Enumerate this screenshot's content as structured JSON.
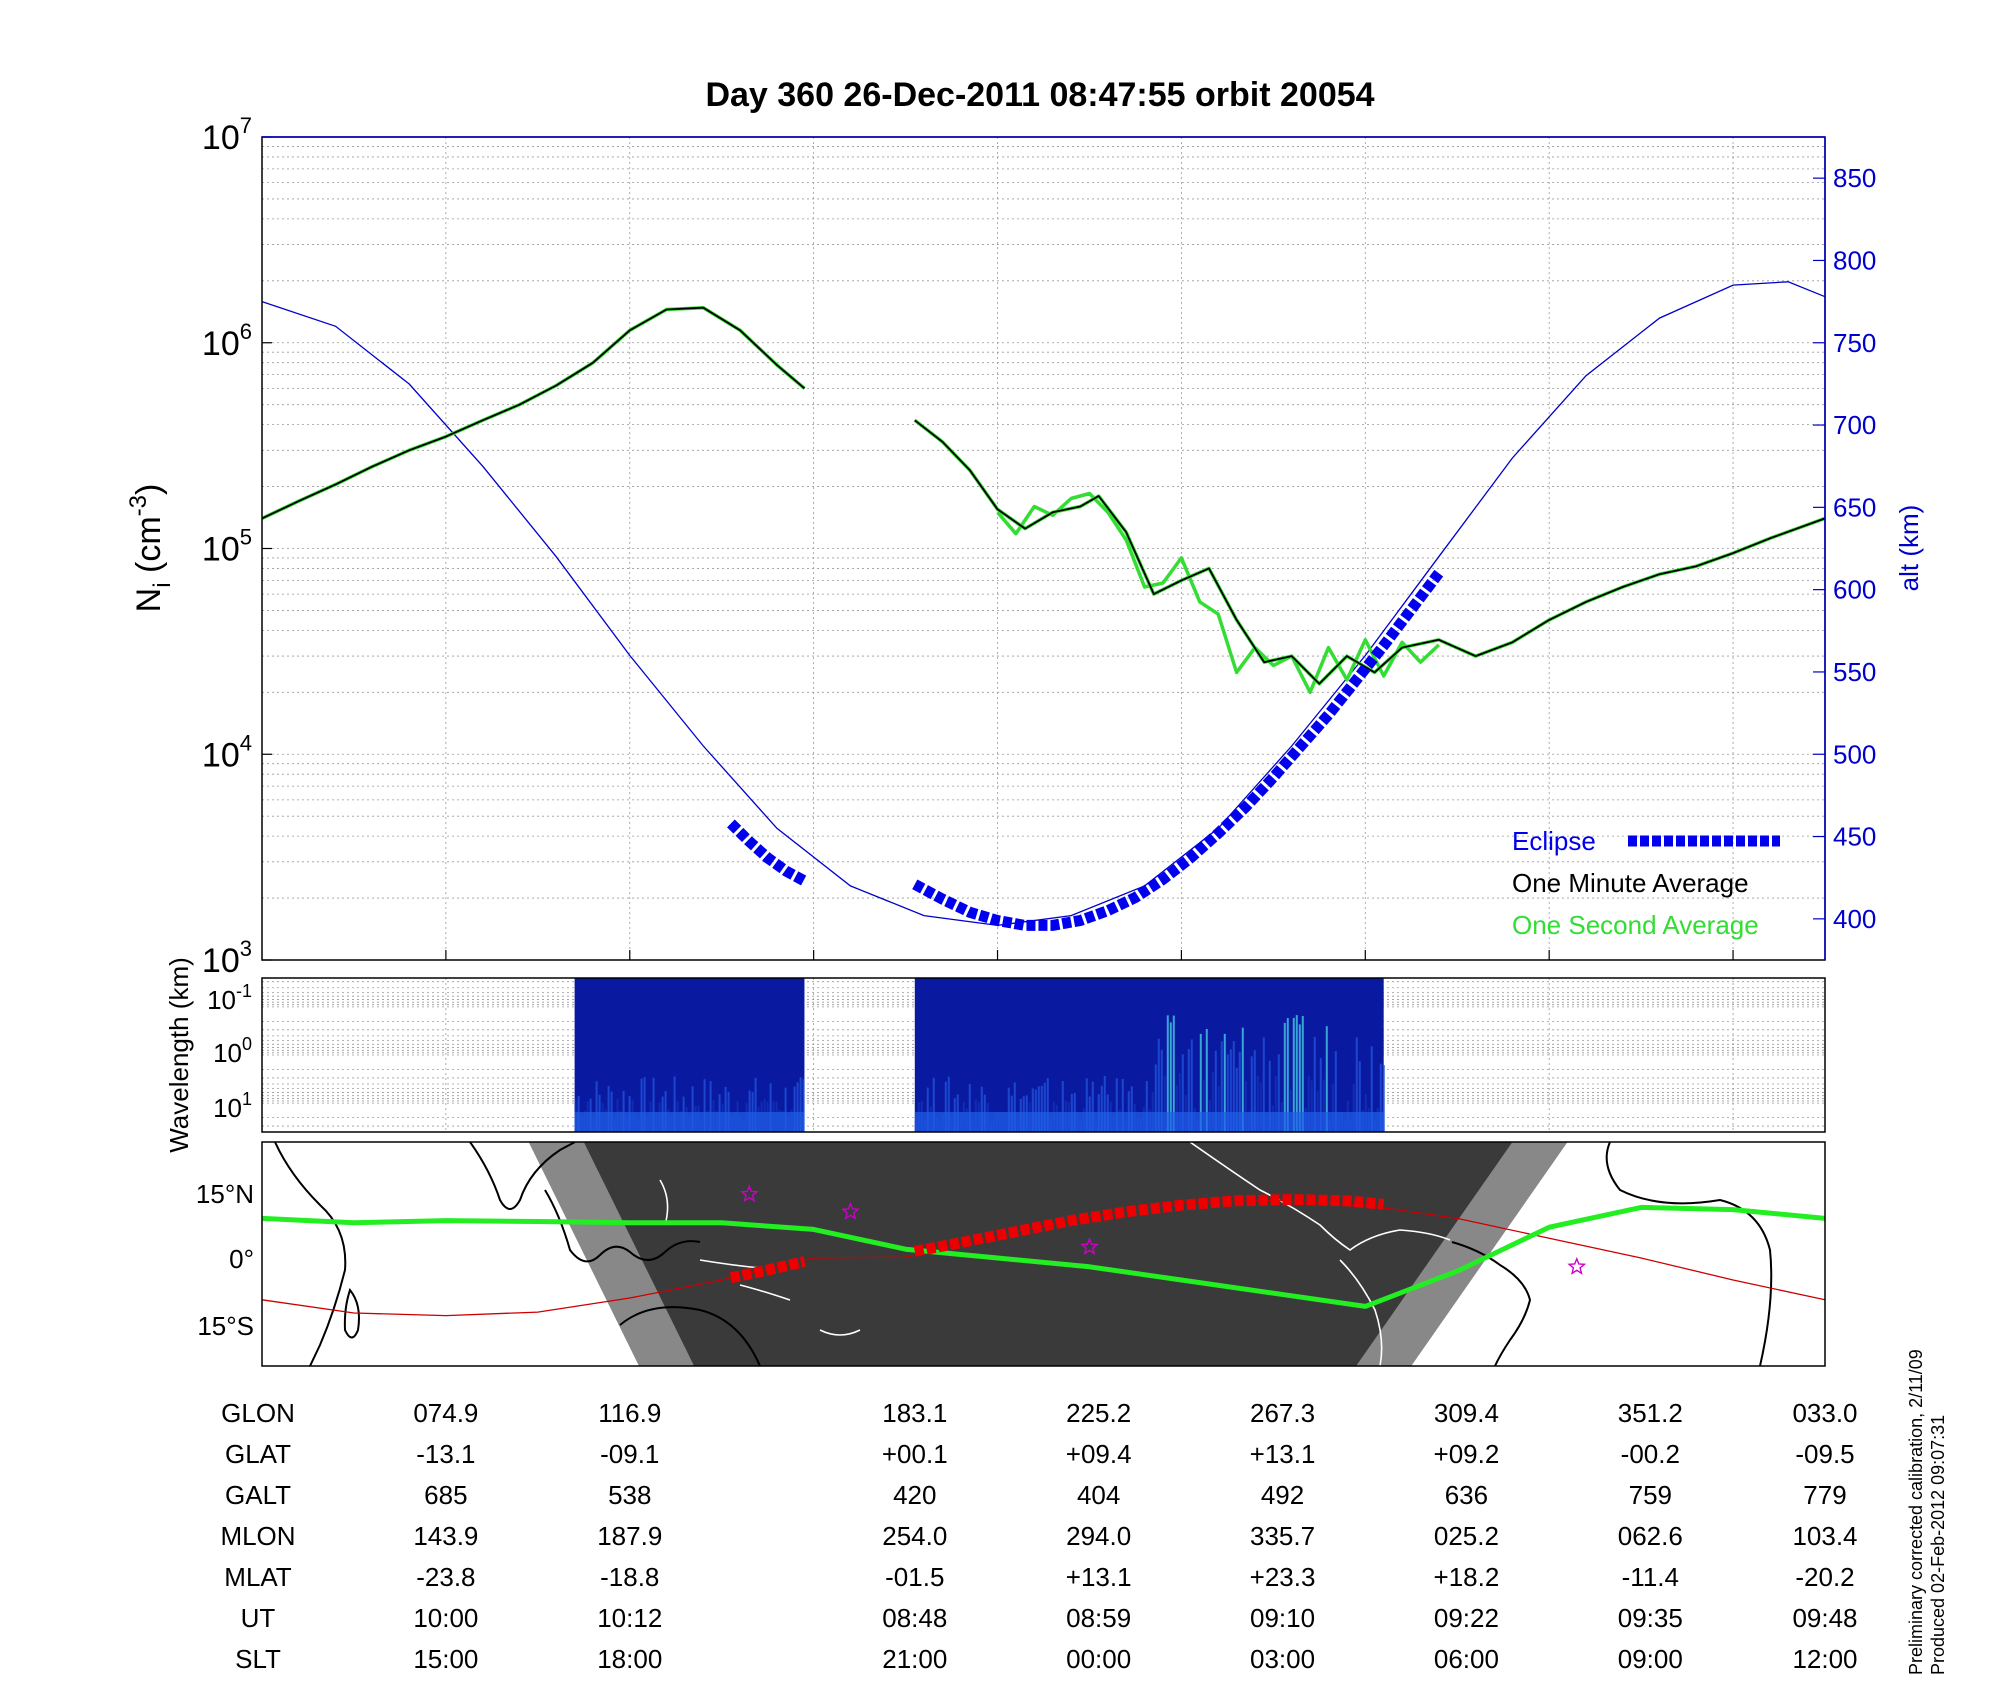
{
  "title": "Day 360  26-Dec-2011 08:47:55   orbit 20054",
  "footer": {
    "line1": "Preliminary corrected calibration, 2/11/09",
    "line2": "Produced 02-Feb-2012 09:07:31"
  },
  "colors": {
    "background": "#ffffff",
    "axis": "#000000",
    "altitude": "#0000cc",
    "eclipse": "#0000ee",
    "one_minute": "#000000",
    "one_second": "#33dd33",
    "spectrogram_bg": "#0a1aa0",
    "map_night": "#3a3a3a",
    "map_twilight": "#888888",
    "ground_track_day": "#cc0000",
    "ground_track_eclipse": "#ee0000",
    "magnetic_equator": "#22ee22",
    "star_marker": "#cc00cc"
  },
  "chart_data": [
    {
      "type": "line",
      "panel": "density",
      "x_range": [
        0,
        8.5
      ],
      "ylabel_main": "N",
      "ylabel_sub": "i",
      "ylabel_unit": " (cm",
      "ylabel_exp": "-3",
      "ylabel_close": ")",
      "yscale": "log",
      "ylim": [
        1000,
        10000000
      ],
      "yticks": [
        {
          "value": 1000,
          "mantissa": "10",
          "exp": "3"
        },
        {
          "value": 10000,
          "mantissa": "10",
          "exp": "4"
        },
        {
          "value": 100000,
          "mantissa": "10",
          "exp": "5"
        },
        {
          "value": 1000000,
          "mantissa": "10",
          "exp": "6"
        },
        {
          "value": 10000000,
          "mantissa": "10",
          "exp": "7"
        }
      ],
      "y2label": "alt (km)",
      "y2lim": [
        375,
        875
      ],
      "y2ticks": [
        400,
        450,
        500,
        550,
        600,
        650,
        700,
        750,
        800,
        850
      ],
      "grid": true,
      "legend_position": "bottom-right",
      "legend": [
        {
          "label": "Eclipse",
          "series": "eclipse"
        },
        {
          "label": "One Minute Average",
          "series": "one_minute"
        },
        {
          "label": "One Second Average",
          "series": "one_second"
        }
      ],
      "series": [
        {
          "id": "one_minute",
          "segments": [
            {
              "x": [
                0,
                0.2,
                0.4,
                0.6,
                0.8,
                1.0,
                1.2,
                1.4,
                1.6,
                1.8,
                2.0,
                2.2,
                2.4,
                2.6,
                2.8,
                2.95
              ],
              "y": [
                140000,
                170000,
                205000,
                250000,
                300000,
                350000,
                420000,
                500000,
                620000,
                800000,
                1150000,
                1450000,
                1480000,
                1150000,
                780000,
                600000
              ]
            },
            {
              "x": [
                3.55,
                3.7,
                3.85,
                4.0,
                4.15,
                4.3,
                4.45,
                4.55,
                4.7,
                4.85,
                5.0,
                5.15,
                5.3,
                5.45,
                5.6,
                5.75,
                5.9,
                6.05,
                6.2,
                6.4,
                6.6,
                6.8,
                7.0,
                7.2,
                7.4,
                7.6,
                7.8,
                8.0,
                8.2,
                8.5
              ],
              "y": [
                420000,
                330000,
                240000,
                155000,
                125000,
                150000,
                160000,
                180000,
                120000,
                60000,
                70000,
                80000,
                45000,
                28000,
                30000,
                22000,
                30000,
                25000,
                33000,
                36000,
                30000,
                35000,
                45000,
                55000,
                65000,
                75000,
                82000,
                95000,
                112000,
                140000
              ]
            }
          ]
        },
        {
          "id": "one_second",
          "segments": [
            {
              "x": [
                4.0,
                4.1,
                4.2,
                4.3,
                4.4,
                4.5,
                4.6,
                4.7,
                4.8,
                4.9,
                5.0,
                5.1,
                5.2,
                5.3,
                5.4,
                5.5,
                5.6,
                5.7,
                5.8,
                5.9,
                6.0,
                6.1,
                6.2,
                6.3,
                6.4
              ],
              "y": [
                150000,
                118000,
                160000,
                145000,
                175000,
                185000,
                150000,
                110000,
                65000,
                68000,
                90000,
                55000,
                48000,
                25000,
                33000,
                27000,
                30000,
                20000,
                33000,
                23000,
                36000,
                24000,
                35000,
                28000,
                34000
              ]
            }
          ]
        },
        {
          "id": "altitude",
          "axis": "right",
          "x": [
            0,
            0.4,
            0.8,
            1.2,
            1.6,
            2.0,
            2.4,
            2.8,
            3.2,
            3.6,
            4.0,
            4.4,
            4.8,
            5.2,
            5.6,
            6.0,
            6.4,
            6.8,
            7.2,
            7.6,
            8.0,
            8.3,
            8.5
          ],
          "y": [
            775,
            760,
            725,
            675,
            620,
            560,
            505,
            455,
            420,
            402,
            396,
            402,
            420,
            455,
            505,
            560,
            620,
            680,
            730,
            765,
            785,
            787,
            778
          ]
        },
        {
          "id": "eclipse",
          "axis": "right",
          "segments": [
            {
              "x": [
                2.55,
                2.65,
                2.75,
                2.85,
                2.95
              ],
              "y": [
                458,
                447,
                437,
                429,
                423
              ]
            },
            {
              "x": [
                3.55,
                3.7,
                3.85,
                4.0,
                4.15,
                4.3,
                4.45,
                4.6,
                4.75,
                4.9,
                5.05,
                5.2,
                5.35,
                5.5,
                5.65,
                5.8,
                5.95,
                6.1,
                6.25,
                6.4
              ],
              "y": [
                421,
                412,
                404,
                399,
                396,
                396,
                399,
                405,
                413,
                424,
                437,
                452,
                468,
                486,
                505,
                524,
                545,
                566,
                588,
                610
              ]
            }
          ]
        }
      ]
    },
    {
      "type": "heatmap",
      "panel": "spectrogram",
      "ylabel": "Wavelength (km)",
      "ytick_labels": [
        {
          "mantissa": "10",
          "exp": "-1"
        },
        {
          "mantissa": "10",
          "exp": "0"
        },
        {
          "mantissa": "10",
          "exp": "1"
        }
      ],
      "data_intervals": [
        [
          1.7,
          2.95
        ],
        [
          3.55,
          6.1
        ]
      ]
    },
    {
      "type": "map",
      "panel": "ground-track",
      "ytick_labels": [
        "15°N",
        "0°",
        "15°S"
      ],
      "ground_track": {
        "x": [
          0,
          0.5,
          1.0,
          1.5,
          2.0,
          2.5,
          3.0,
          3.5,
          4.0,
          4.5,
          5.0,
          5.5,
          6.0,
          6.5,
          7.0,
          7.5,
          8.0,
          8.5
        ],
        "lat": [
          -9.5,
          -12.5,
          -13.1,
          -12.3,
          -9.1,
          -5.0,
          0.0,
          0.2,
          5.0,
          9.5,
          12.5,
          13.1,
          12.0,
          9.0,
          4.5,
          0.0,
          -5.0,
          -9.5
        ]
      },
      "magnetic_equator": {
        "x": [
          0,
          0.5,
          1.0,
          1.5,
          2.0,
          2.5,
          3.0,
          3.5,
          4.0,
          4.5,
          5.0,
          5.5,
          6.0,
          6.5,
          7.0,
          7.5,
          8.0,
          8.5
        ],
        "lat": [
          9.0,
          8.0,
          8.5,
          8.3,
          8.0,
          8.0,
          6.5,
          2.0,
          0.0,
          -2.0,
          -5.0,
          -8.0,
          -11.0,
          -3.0,
          7.0,
          11.5,
          11.0,
          9.0
        ]
      },
      "eclipse_track_segments": [
        {
          "x": [
            2.55,
            2.7,
            2.85,
            2.95
          ],
          "lat": [
            -4.5,
            -3.2,
            -1.8,
            -0.8
          ]
        },
        {
          "x": [
            3.55,
            3.8,
            4.1,
            4.4,
            4.7,
            5.0,
            5.3,
            5.6,
            5.9,
            6.1
          ],
          "lat": [
            1.5,
            3.5,
            6.0,
            8.5,
            10.5,
            12.0,
            13.0,
            13.3,
            13.0,
            12.2
          ]
        }
      ],
      "star_markers": [
        {
          "x": 2.65,
          "lat": 14.5
        },
        {
          "x": 3.2,
          "lat": 10.5
        },
        {
          "x": 4.5,
          "lat": 2.5
        },
        {
          "x": 7.15,
          "lat": -2.0
        }
      ],
      "night_region": {
        "top_x": [
          1.75,
          6.8
        ],
        "bottom_x": [
          2.35,
          5.95
        ],
        "twilight_width": 0.3
      }
    }
  ],
  "table": {
    "rows": [
      {
        "label": "GLON",
        "values": [
          "074.9",
          "116.9",
          "183.1",
          "225.2",
          "267.3",
          "309.4",
          "351.2",
          "033.0"
        ]
      },
      {
        "label": "GLAT",
        "values": [
          "-13.1",
          "-09.1",
          "+00.1",
          "+09.4",
          "+13.1",
          "+09.2",
          "-00.2",
          "-09.5"
        ]
      },
      {
        "label": "GALT",
        "values": [
          "685",
          "538",
          "420",
          "404",
          "492",
          "636",
          "759",
          "779"
        ]
      },
      {
        "label": "MLON",
        "values": [
          "143.9",
          "187.9",
          "254.0",
          "294.0",
          "335.7",
          "025.2",
          "062.6",
          "103.4"
        ]
      },
      {
        "label": "MLAT",
        "values": [
          "-23.8",
          "-18.8",
          "-01.5",
          "+13.1",
          "+23.3",
          "+18.2",
          "-11.4",
          "-20.2"
        ]
      },
      {
        "label": "UT",
        "values": [
          "10:00",
          "10:12",
          "08:48",
          "08:59",
          "09:10",
          "09:22",
          "09:35",
          "09:48"
        ]
      },
      {
        "label": "SLT",
        "values": [
          "15:00",
          "18:00",
          "21:00",
          "00:00",
          "03:00",
          "06:00",
          "09:00",
          "12:00"
        ]
      }
    ],
    "column_x": [
      1.0,
      2.0,
      3.55,
      4.55,
      5.55,
      6.55,
      7.55,
      8.5
    ]
  }
}
